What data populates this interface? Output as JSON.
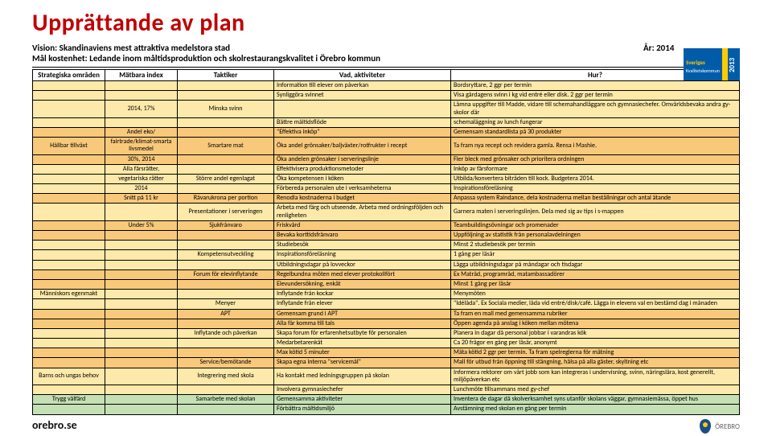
{
  "title": "Upprättande av plan",
  "vision_label": "Vision: Skandinaviens mest attraktiva medelstora stad",
  "year_label": "År: 2014",
  "mal_label": "Mål kostenhet: Ledande inom måltidsproduktion och skolrestaurangskvalitet i Örebro kommun",
  "footer": "orebro.se",
  "logo_text": "ÖREBRO",
  "sk_logo_text": "Sveriges Kvalitetskommun 2013",
  "headers": [
    "Strategiska områden",
    "Mätbara index",
    "Taktiker",
    "Vad, aktiviteter",
    "Hur?"
  ],
  "colors": {
    "yellow": "#fde9a9",
    "orange": "#f9c97b",
    "green": "#c5e0b4"
  },
  "rows": [
    {
      "c": "yellow",
      "a": null,
      "b": null,
      "t": null,
      "v": "Information till elever om påverkan",
      "h": "Bordsryttare, 2 ggr per termin"
    },
    {
      "c": "yellow",
      "a": null,
      "b": null,
      "t": null,
      "v": "Synliggöra svinnet",
      "h": "Visa gårdagens svinn i kg vid entré eller disk. 2 ggr per termin"
    },
    {
      "c": "yellow",
      "a": null,
      "b": "2014, 17%",
      "t": "Minska svinn",
      "v": "",
      "h": "Lämna uppgifter till Madde, vidare till schemahandläggare och gymnasiechefer. Omvärldsbevaka andra gy-skolor där"
    },
    {
      "c": "yellow",
      "a": null,
      "b": null,
      "t": null,
      "v": "Bättre måltidsflöde",
      "h": "schemaläggning av lunch fungerar"
    },
    {
      "c": "orange",
      "a": null,
      "b": "Andel eko/",
      "t": null,
      "v": "\"Effektiva inköp\"",
      "h": "Gemensam standardlista på 30 produkter"
    },
    {
      "c": "orange",
      "a": "Hållbar tillväxt",
      "b": "fairtrade/klimat-smarta livsmedel",
      "t": "Smartare mat",
      "v": "Öka andel grönsaker/baljväxter/rotfrukter i recept",
      "h": "Ta fram nya recept och revidera gamla. Rensa i Mashie."
    },
    {
      "c": "orange",
      "a": null,
      "b": "30%, 2014",
      "t": null,
      "v": "Öka andelen grönsaker i serveringslinje",
      "h": "Fler bleck med grönsaker och prioritera ordningen"
    },
    {
      "c": "yellow",
      "a": null,
      "b": "Alla färsrätter,",
      "t": null,
      "v": "Effektivisera produktionsmetoder",
      "h": "Inköp av färsformare"
    },
    {
      "c": "yellow",
      "a": null,
      "b": "vegetariska rätter",
      "t": "Större andel egenlagat",
      "v": "Öka kompetensen i köken",
      "h": "Utbilda/konvertera biträden till kock. Budgetera 2014."
    },
    {
      "c": "yellow",
      "a": null,
      "b": "2014",
      "t": null,
      "v": "Förbereda personalen ute i verksamheterna",
      "h": "Inspirationsföreläsning"
    },
    {
      "c": "orange",
      "a": null,
      "b": "Snitt på 11 kr",
      "t": "Råvarukrona per portion",
      "v": "Renodla kostnaderna i budget",
      "h": "Anpassa system Raindance, dela kostnaderna mellan beställningar och antal ätande"
    },
    {
      "c": "yellow",
      "a": null,
      "b": null,
      "t": "Presentationer i serveringen",
      "v": "Arbeta med färg och utseende. Arbeta med ordningsföljden och renligheten",
      "h": "Garnera maten i serveringslinjen. Dela med sig av tips i s-mappen"
    },
    {
      "c": "orange",
      "a": null,
      "b": "Under 5%",
      "t": "Sjukfrånvaro",
      "v": "Friskvård",
      "h": "Teambuildingsövningar och promenader"
    },
    {
      "c": "orange",
      "a": null,
      "b": null,
      "t": null,
      "v": "Bevaka korttidsfrånvaro",
      "h": "Uppföljning av statistik från personalavdelningen"
    },
    {
      "c": "yellow",
      "a": null,
      "b": null,
      "t": null,
      "v": "Studiebesök",
      "h": "Minst 2 studiebesök per termin"
    },
    {
      "c": "yellow",
      "a": null,
      "b": null,
      "t": "Kompetensutveckling",
      "v": "Inspirationsföreläsning",
      "h": "1 gång per läsår"
    },
    {
      "c": "yellow",
      "a": null,
      "b": null,
      "t": null,
      "v": "Utbildningsdagar på lovveckor",
      "h": "Lägga utbildningsdagar på måndagar och tisdagar"
    },
    {
      "c": "orange",
      "a": null,
      "b": null,
      "t": "Forum för elevinflytande",
      "v": "Regelbundna möten med elever protokollfört",
      "h": "Ex Matråd, programråd, matambassadörer"
    },
    {
      "c": "orange",
      "a": null,
      "b": null,
      "t": null,
      "v": "Elevundersökning, enkät",
      "h": "Minst 1 gång per läsår"
    },
    {
      "c": "yellow",
      "a": "Människors egenmakt",
      "b": null,
      "t": null,
      "v": "Inflytande från kockar",
      "h": "Menymöten"
    },
    {
      "c": "yellow",
      "a": null,
      "b": null,
      "t": "Menyer",
      "v": "Inflytande från elever",
      "h": "\"Idélåda\". Ex Sociala medier, låda vid entré/disk/café. Lägga in elevens val en bestämd dag i månaden"
    },
    {
      "c": "orange",
      "a": null,
      "b": null,
      "t": "APT",
      "v": "Gemensam grund i APT",
      "h": "Ta fram en mall med gemensamma rubriker"
    },
    {
      "c": "orange",
      "a": null,
      "b": null,
      "t": null,
      "v": "Alla får komma till tals",
      "h": "Öppen agenda på anslag i köken mellan mötena"
    },
    {
      "c": "yellow",
      "a": null,
      "b": null,
      "t": "Inflytande och påverkan",
      "v": "Skapa forum för erfarenhetsutbyte för personalen",
      "h": "Planera in dagar då personal jobbar i varandras kök"
    },
    {
      "c": "yellow",
      "a": null,
      "b": null,
      "t": null,
      "v": "Medarbetarenkät",
      "h": "Ca 20 frågor en gång per läsår, anonymt"
    },
    {
      "c": "orange",
      "a": null,
      "b": null,
      "t": null,
      "v": "Max kötid 5 minuter",
      "h": "Mäta kötid 2 ggr per termin. Ta fram spelreglerna för mätning"
    },
    {
      "c": "orange",
      "a": null,
      "b": null,
      "t": "Service/bemötande",
      "v": "Skapa egna interna \"servicemål\"",
      "h": "Mall för utbud från öppning till stängning, hälsa på alla gäster, skyltning etc"
    },
    {
      "c": "yellow",
      "a": "Barns och ungas behov",
      "b": null,
      "t": "Integrering med skola",
      "v": "Ha kontakt med ledningsgruppen på skolan",
      "h": "Informera rektorer om vårt jobb som kan integreras i undervisning, svinn, näringslära, kost generellt, miljöpåverkan etc"
    },
    {
      "c": "yellow",
      "a": null,
      "b": null,
      "t": null,
      "v": "Involvera gymnasiechefer",
      "h": "Lunchmöte tillsammans med gy-chef"
    },
    {
      "c": "green",
      "a": "Trygg välfärd",
      "b": null,
      "t": "Samarbete med skolan",
      "v": "Gemensamma aktiviteter",
      "h": "Inventera de dagar då skolverksamhet syns utanför skolans väggar, gymnasiemässa, öppet hus"
    },
    {
      "c": "green",
      "a": null,
      "b": null,
      "t": null,
      "v": "Förbättra måltidsmiljö",
      "h": "Avstämning med skolan en gång per termin"
    }
  ]
}
